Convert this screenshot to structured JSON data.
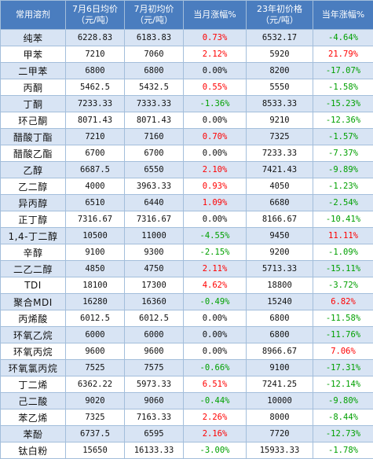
{
  "headers": [
    [
      "常用溶剂"
    ],
    [
      "7月6日均价",
      "（元/吨）"
    ],
    [
      "7月初均价",
      "（元/吨）"
    ],
    [
      "当月涨幅%"
    ],
    [
      "23年初价格",
      "（元/吨）"
    ],
    [
      "当年涨幅%"
    ]
  ],
  "colors": {
    "header_bg": "#4a7dbf",
    "alt_row_bg": "#d8e4f4",
    "grid": "#a3bedb",
    "up": "#ff0000",
    "down": "#00a000"
  },
  "rows": [
    {
      "name": "纯苯",
      "current": "6228.83",
      "month_start": "6183.83",
      "month_chg": "0.73%",
      "year_start": "6532.17",
      "year_chg": "-4.64%"
    },
    {
      "name": "甲苯",
      "current": "7210",
      "month_start": "7060",
      "month_chg": "2.12%",
      "year_start": "5920",
      "year_chg": "21.79%"
    },
    {
      "name": "二甲苯",
      "current": "6800",
      "month_start": "6800",
      "month_chg": "0.00%",
      "year_start": "8200",
      "year_chg": "-17.07%"
    },
    {
      "name": "丙酮",
      "current": "5462.5",
      "month_start": "5432.5",
      "month_chg": "0.55%",
      "year_start": "5550",
      "year_chg": "-1.58%"
    },
    {
      "name": "丁酮",
      "current": "7233.33",
      "month_start": "7333.33",
      "month_chg": "-1.36%",
      "year_start": "8533.33",
      "year_chg": "-15.23%"
    },
    {
      "name": "环己酮",
      "current": "8071.43",
      "month_start": "8071.43",
      "month_chg": "0.00%",
      "year_start": "9210",
      "year_chg": "-12.36%"
    },
    {
      "name": "醋酸丁酯",
      "current": "7210",
      "month_start": "7160",
      "month_chg": "0.70%",
      "year_start": "7325",
      "year_chg": "-1.57%"
    },
    {
      "name": "醋酸乙酯",
      "current": "6700",
      "month_start": "6700",
      "month_chg": "0.00%",
      "year_start": "7233.33",
      "year_chg": "-7.37%"
    },
    {
      "name": "乙醇",
      "current": "6687.5",
      "month_start": "6550",
      "month_chg": "2.10%",
      "year_start": "7421.43",
      "year_chg": "-9.89%"
    },
    {
      "name": "乙二醇",
      "current": "4000",
      "month_start": "3963.33",
      "month_chg": "0.93%",
      "year_start": "4050",
      "year_chg": "-1.23%"
    },
    {
      "name": "异丙醇",
      "current": "6510",
      "month_start": "6440",
      "month_chg": "1.09%",
      "year_start": "6680",
      "year_chg": "-2.54%"
    },
    {
      "name": "正丁醇",
      "current": "7316.67",
      "month_start": "7316.67",
      "month_chg": "0.00%",
      "year_start": "8166.67",
      "year_chg": "-10.41%"
    },
    {
      "name": "1,4-丁二醇",
      "current": "10500",
      "month_start": "11000",
      "month_chg": "-4.55%",
      "year_start": "9450",
      "year_chg": "11.11%"
    },
    {
      "name": "辛醇",
      "current": "9100",
      "month_start": "9300",
      "month_chg": "-2.15%",
      "year_start": "9200",
      "year_chg": "-1.09%"
    },
    {
      "name": "二乙二醇",
      "current": "4850",
      "month_start": "4750",
      "month_chg": "2.11%",
      "year_start": "5713.33",
      "year_chg": "-15.11%"
    },
    {
      "name": "TDI",
      "current": "18100",
      "month_start": "17300",
      "month_chg": "4.62%",
      "year_start": "18800",
      "year_chg": "-3.72%"
    },
    {
      "name": "聚合MDI",
      "current": "16280",
      "month_start": "16360",
      "month_chg": "-0.49%",
      "year_start": "15240",
      "year_chg": "6.82%"
    },
    {
      "name": "丙烯酸",
      "current": "6012.5",
      "month_start": "6012.5",
      "month_chg": "0.00%",
      "year_start": "6800",
      "year_chg": "-11.58%"
    },
    {
      "name": "环氧乙烷",
      "current": "6000",
      "month_start": "6000",
      "month_chg": "0.00%",
      "year_start": "6800",
      "year_chg": "-11.76%"
    },
    {
      "name": "环氧丙烷",
      "current": "9600",
      "month_start": "9600",
      "month_chg": "0.00%",
      "year_start": "8966.67",
      "year_chg": "7.06%"
    },
    {
      "name": "环氧氯丙烷",
      "current": "7525",
      "month_start": "7575",
      "month_chg": "-0.66%",
      "year_start": "9100",
      "year_chg": "-17.31%"
    },
    {
      "name": "丁二烯",
      "current": "6362.22",
      "month_start": "5973.33",
      "month_chg": "6.51%",
      "year_start": "7241.25",
      "year_chg": "-12.14%"
    },
    {
      "name": "己二酸",
      "current": "9020",
      "month_start": "9060",
      "month_chg": "-0.44%",
      "year_start": "10000",
      "year_chg": "-9.80%"
    },
    {
      "name": "苯乙烯",
      "current": "7325",
      "month_start": "7163.33",
      "month_chg": "2.26%",
      "year_start": "8000",
      "year_chg": "-8.44%"
    },
    {
      "name": "苯酚",
      "current": "6737.5",
      "month_start": "6595",
      "month_chg": "2.16%",
      "year_start": "7720",
      "year_chg": "-12.73%"
    },
    {
      "name": "钛白粉",
      "current": "15650",
      "month_start": "16133.33",
      "month_chg": "-3.00%",
      "year_start": "15933.33",
      "year_chg": "-1.78%"
    }
  ]
}
